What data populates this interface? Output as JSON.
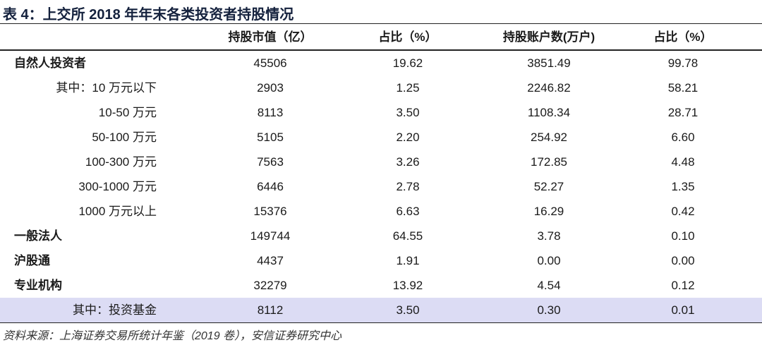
{
  "title": "表 4：上交所 2018 年年末各类投资者持股情况",
  "table": {
    "headers": [
      "持股市值（亿）",
      "占比（%）",
      "持股账户数(万户)",
      "占比（%）"
    ],
    "rows": [
      {
        "label": "自然人投资者",
        "level": "top",
        "cells": [
          "45506",
          "19.62",
          "3851.49",
          "99.78"
        ]
      },
      {
        "label": "其中：10 万元以下",
        "level": "sub",
        "cells": [
          "2903",
          "1.25",
          "2246.82",
          "58.21"
        ]
      },
      {
        "label": "10-50 万元",
        "level": "sub",
        "cells": [
          "8113",
          "3.50",
          "1108.34",
          "28.71"
        ]
      },
      {
        "label": "50-100 万元",
        "level": "sub",
        "cells": [
          "5105",
          "2.20",
          "254.92",
          "6.60"
        ]
      },
      {
        "label": "100-300 万元",
        "level": "sub",
        "cells": [
          "7563",
          "3.26",
          "172.85",
          "4.48"
        ]
      },
      {
        "label": "300-1000 万元",
        "level": "sub",
        "cells": [
          "6446",
          "2.78",
          "52.27",
          "1.35"
        ]
      },
      {
        "label": "1000 万元以上",
        "level": "sub",
        "cells": [
          "15376",
          "6.63",
          "16.29",
          "0.42"
        ]
      },
      {
        "label": "一般法人",
        "level": "top",
        "cells": [
          "149744",
          "64.55",
          "3.78",
          "0.10"
        ]
      },
      {
        "label": "沪股通",
        "level": "top",
        "cells": [
          "4437",
          "1.91",
          "0.00",
          "0.00"
        ]
      },
      {
        "label": "专业机构",
        "level": "top",
        "cells": [
          "32279",
          "13.92",
          "4.54",
          "0.12"
        ]
      },
      {
        "label": "其中：投资基金",
        "level": "sub",
        "highlight": true,
        "cells": [
          "8112",
          "3.50",
          "0.30",
          "0.01"
        ]
      }
    ]
  },
  "source": "资料来源：上海证券交易所统计年鉴（2019 卷），安信证券研究中心"
}
